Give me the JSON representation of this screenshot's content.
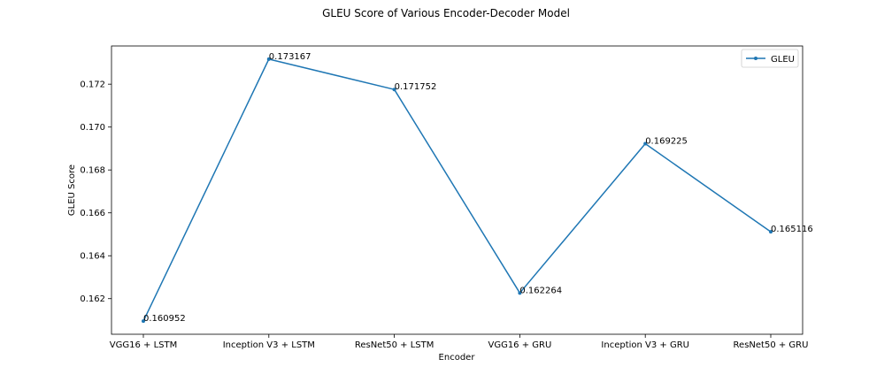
{
  "chart_data": {
    "type": "line",
    "title": "GLEU Score of Various Encoder-Decoder Model",
    "xlabel": "Encoder",
    "ylabel": "GLEU Score",
    "categories": [
      "VGG16 + LSTM",
      "Inception V3 + LSTM",
      "ResNet50 + LSTM",
      "VGG16 + GRU",
      "Inception V3 + GRU",
      "ResNet50 + GRU"
    ],
    "series": [
      {
        "name": "GLEU",
        "values": [
          0.160952,
          0.173167,
          0.171752,
          0.162264,
          0.169225,
          0.165116
        ],
        "labels": [
          "0.160952",
          "0.173167",
          "0.171752",
          "0.162264",
          "0.169225",
          "0.165116"
        ]
      }
    ],
    "ylim": [
      0.16034,
      0.17378
    ],
    "yticks": [
      0.162,
      0.164,
      0.166,
      0.168,
      0.17,
      0.172
    ],
    "ytick_labels": [
      "0.162",
      "0.164",
      "0.166",
      "0.168",
      "0.170",
      "0.172"
    ],
    "grid": false,
    "legend_position": "top-right",
    "line_color": "#1f77b4"
  }
}
